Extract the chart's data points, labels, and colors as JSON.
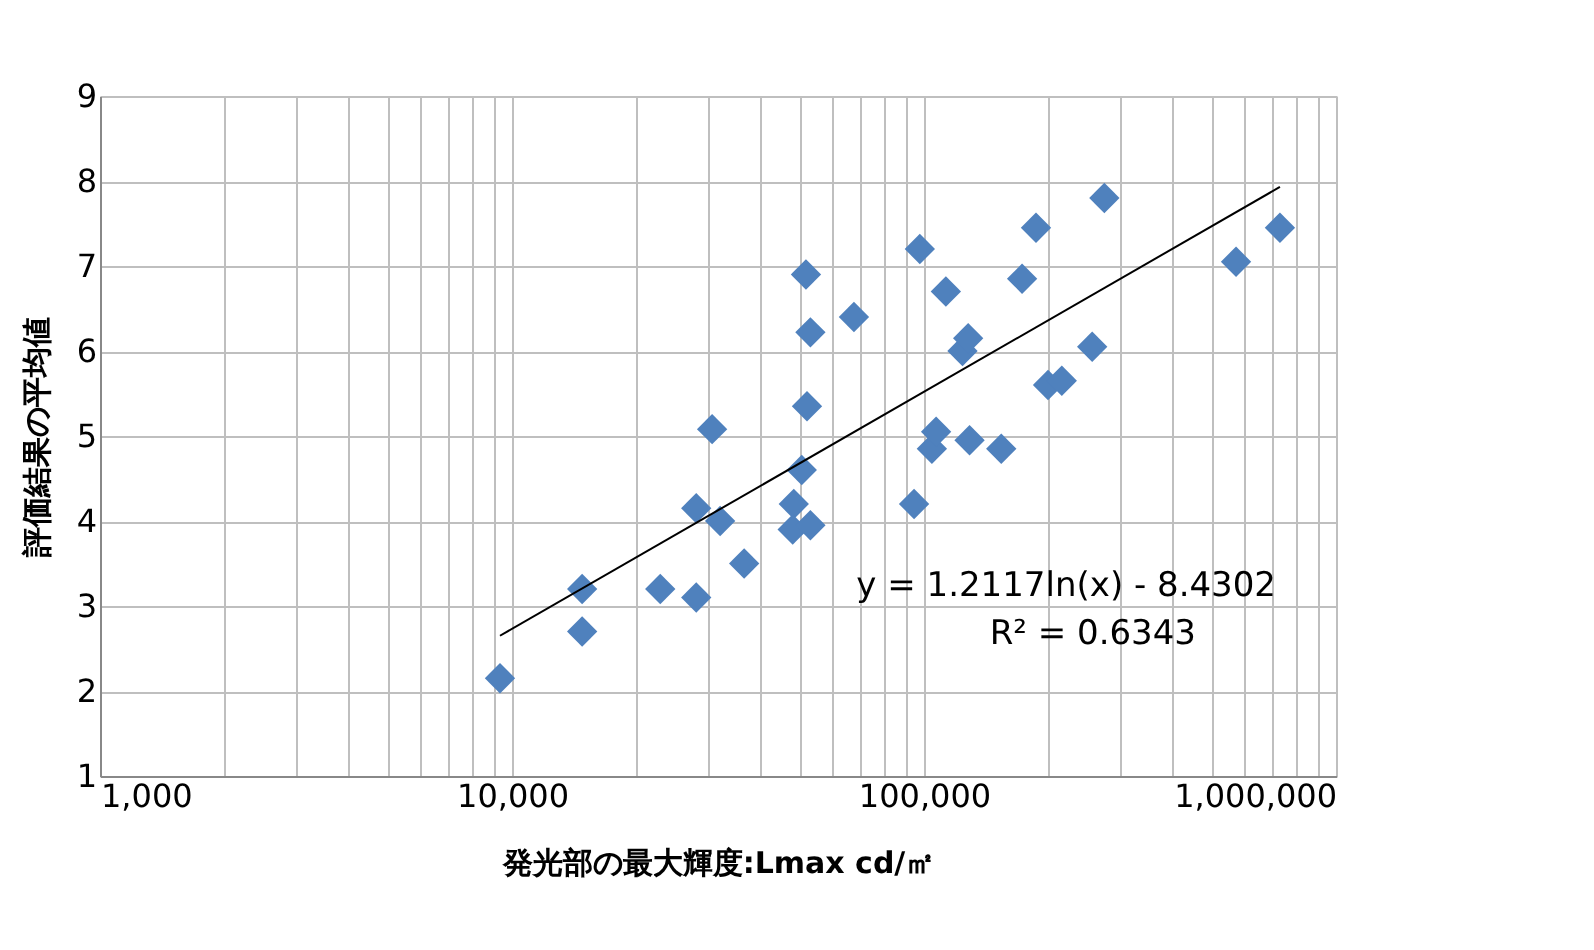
{
  "chart_data": {
    "type": "scatter",
    "xlabel": "発光部の最大輝度:Lmax cd/㎡",
    "ylabel": "評価結果の平均値",
    "log": "x",
    "grid": true,
    "marker": "diamond",
    "xlim": [
      1000,
      1000000
    ],
    "ylim": [
      1,
      9
    ],
    "yticks": [
      1,
      2,
      3,
      4,
      5,
      6,
      7,
      8,
      9
    ],
    "xticks": [
      {
        "value": 1000,
        "label": "1,000"
      },
      {
        "value": 2000,
        "label": null
      },
      {
        "value": 3000,
        "label": null
      },
      {
        "value": 4000,
        "label": null
      },
      {
        "value": 5000,
        "label": null
      },
      {
        "value": 6000,
        "label": null
      },
      {
        "value": 7000,
        "label": null
      },
      {
        "value": 8000,
        "label": null
      },
      {
        "value": 9000,
        "label": null
      },
      {
        "value": 10000,
        "label": "10,000"
      },
      {
        "value": 20000,
        "label": null
      },
      {
        "value": 30000,
        "label": null
      },
      {
        "value": 40000,
        "label": null
      },
      {
        "value": 50000,
        "label": null
      },
      {
        "value": 60000,
        "label": null
      },
      {
        "value": 70000,
        "label": null
      },
      {
        "value": 80000,
        "label": null
      },
      {
        "value": 90000,
        "label": null
      },
      {
        "value": 100000,
        "label": "100,000"
      },
      {
        "value": 200000,
        "label": null
      },
      {
        "value": 300000,
        "label": null
      },
      {
        "value": 400000,
        "label": null
      },
      {
        "value": 500000,
        "label": null
      },
      {
        "value": 600000,
        "label": null
      },
      {
        "value": 700000,
        "label": null
      },
      {
        "value": 800000,
        "label": null
      },
      {
        "value": 900000,
        "label": null
      },
      {
        "value": 1000000,
        "label": "1,000,000"
      }
    ],
    "series": [
      {
        "color": "#4f81bd",
        "x": [
          9350,
          14800,
          14800,
          22900,
          28000,
          28000,
          30600,
          32000,
          36600,
          48300,
          50500,
          51700,
          52000,
          53000,
          48000,
          53000,
          67600,
          97700,
          94600,
          104500,
          107000,
          113000,
          124000,
          128000,
          129000,
          154000,
          173000,
          187000,
          200000,
          216000,
          256000,
          274000,
          572000,
          731000
        ],
        "values": [
          2.15,
          3.2,
          2.7,
          3.2,
          3.1,
          4.15,
          5.08,
          4.0,
          3.5,
          4.2,
          4.6,
          6.9,
          5.35,
          6.22,
          3.9,
          3.95,
          6.4,
          7.2,
          4.2,
          4.85,
          5.05,
          6.7,
          6.0,
          6.15,
          4.95,
          4.85,
          6.85,
          7.45,
          5.6,
          5.65,
          6.05,
          7.8,
          7.05,
          7.45
        ]
      },
      {
        "type": "line",
        "marker": "none",
        "color": "#000000",
        "x": [
          9350,
          731000
        ],
        "values": [
          2.65,
          7.93
        ]
      }
    ],
    "annotations": [
      "y = 1.2117ln(x) - 8.4302",
      "R² = 0.6343"
    ]
  }
}
